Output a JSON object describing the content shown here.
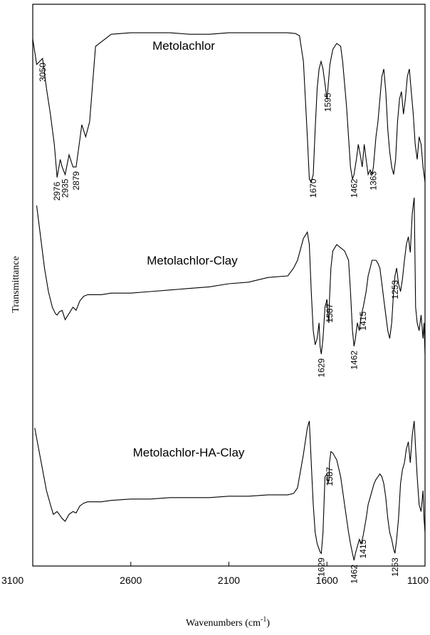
{
  "chart_data": {
    "type": "line",
    "xlabel": "Wavenumbers (cm",
    "xlabel_sup": "-1",
    "xlabel_close": ")",
    "ylabel": "Transmittance",
    "xlim": [
      3100,
      1100
    ],
    "x_reversed": true,
    "x_ticks": [
      {
        "value": 3100,
        "label": "3100"
      },
      {
        "value": 2600,
        "label": "2600"
      },
      {
        "value": 2100,
        "label": "2100"
      },
      {
        "value": 1600,
        "label": "1600"
      },
      {
        "value": 1100,
        "label": "1100"
      }
    ],
    "series": [
      {
        "name": "Metolachlor",
        "x": [
          3100,
          3080,
          3050,
          3030,
          3010,
          2990,
          2976,
          2960,
          2950,
          2935,
          2915,
          2895,
          2879,
          2860,
          2850,
          2830,
          2810,
          2780,
          2700,
          2600,
          2500,
          2400,
          2300,
          2200,
          2100,
          2000,
          1900,
          1800,
          1760,
          1740,
          1720,
          1700,
          1690,
          1680,
          1670,
          1660,
          1650,
          1640,
          1630,
          1620,
          1610,
          1600,
          1595,
          1585,
          1570,
          1550,
          1530,
          1520,
          1500,
          1480,
          1470,
          1462,
          1450,
          1440,
          1430,
          1420,
          1410,
          1400,
          1390,
          1380,
          1370,
          1363,
          1350,
          1340,
          1330,
          1320,
          1310,
          1300,
          1290,
          1280,
          1270,
          1260,
          1250,
          1240,
          1230,
          1220,
          1210,
          1200,
          1190,
          1180,
          1170,
          1160,
          1150,
          1140,
          1130,
          1120,
          1110,
          1100
        ],
        "y": [
          0.95,
          0.78,
          0.82,
          0.62,
          0.45,
          0.25,
          0.03,
          0.15,
          0.1,
          0.05,
          0.18,
          0.1,
          0.1,
          0.28,
          0.38,
          0.3,
          0.4,
          0.9,
          0.98,
          0.99,
          0.99,
          0.99,
          0.98,
          0.98,
          0.99,
          0.99,
          0.99,
          0.99,
          0.985,
          0.97,
          0.8,
          0.3,
          0.02,
          0.0,
          0.05,
          0.35,
          0.62,
          0.75,
          0.8,
          0.75,
          0.65,
          0.55,
          0.62,
          0.78,
          0.88,
          0.92,
          0.9,
          0.8,
          0.5,
          0.1,
          0.02,
          0.05,
          0.15,
          0.25,
          0.18,
          0.1,
          0.25,
          0.15,
          0.05,
          0.08,
          0.05,
          0.1,
          0.3,
          0.4,
          0.55,
          0.7,
          0.75,
          0.6,
          0.35,
          0.2,
          0.1,
          0.05,
          0.15,
          0.4,
          0.55,
          0.6,
          0.45,
          0.55,
          0.7,
          0.75,
          0.6,
          0.45,
          0.25,
          0.15,
          0.3,
          0.25,
          0.1,
          0.0
        ]
      },
      {
        "name": "Metolachlor-Clay",
        "x": [
          3080,
          3060,
          3040,
          3020,
          3000,
          2985,
          2976,
          2965,
          2950,
          2935,
          2915,
          2895,
          2879,
          2860,
          2840,
          2820,
          2800,
          2750,
          2700,
          2600,
          2500,
          2400,
          2300,
          2200,
          2100,
          2000,
          1900,
          1800,
          1770,
          1750,
          1720,
          1700,
          1690,
          1680,
          1670,
          1660,
          1650,
          1640,
          1635,
          1629,
          1620,
          1610,
          1600,
          1595,
          1590,
          1587,
          1580,
          1570,
          1550,
          1530,
          1510,
          1490,
          1480,
          1470,
          1462,
          1455,
          1445,
          1435,
          1425,
          1415,
          1400,
          1390,
          1380,
          1370,
          1360,
          1350,
          1340,
          1330,
          1320,
          1310,
          1300,
          1290,
          1280,
          1270,
          1260,
          1253,
          1245,
          1235,
          1225,
          1215,
          1205,
          1195,
          1185,
          1175,
          1165,
          1155,
          1148,
          1140,
          1130,
          1120,
          1110,
          1105,
          1100
        ],
        "y": [
          0.95,
          0.75,
          0.55,
          0.4,
          0.3,
          0.26,
          0.25,
          0.27,
          0.28,
          0.22,
          0.26,
          0.3,
          0.28,
          0.34,
          0.37,
          0.38,
          0.38,
          0.38,
          0.39,
          0.39,
          0.4,
          0.41,
          0.42,
          0.43,
          0.45,
          0.46,
          0.49,
          0.5,
          0.55,
          0.6,
          0.74,
          0.78,
          0.7,
          0.4,
          0.15,
          0.06,
          0.1,
          0.2,
          0.05,
          0.0,
          0.1,
          0.3,
          0.35,
          0.25,
          0.2,
          0.35,
          0.55,
          0.66,
          0.7,
          0.68,
          0.66,
          0.6,
          0.4,
          0.15,
          0.05,
          0.1,
          0.2,
          0.15,
          0.25,
          0.3,
          0.4,
          0.5,
          0.55,
          0.6,
          0.6,
          0.6,
          0.58,
          0.55,
          0.45,
          0.35,
          0.25,
          0.15,
          0.1,
          0.2,
          0.4,
          0.5,
          0.55,
          0.45,
          0.4,
          0.48,
          0.6,
          0.7,
          0.75,
          0.65,
          0.9,
          1.0,
          0.3,
          0.2,
          0.15,
          0.25,
          0.1,
          0.2,
          0.0
        ]
      },
      {
        "name": "Metolachlor-HA-Clay",
        "x": [
          3090,
          3070,
          3050,
          3030,
          3010,
          2995,
          2976,
          2965,
          2950,
          2935,
          2915,
          2895,
          2879,
          2860,
          2840,
          2820,
          2800,
          2750,
          2700,
          2600,
          2500,
          2400,
          2300,
          2200,
          2100,
          2000,
          1900,
          1800,
          1770,
          1750,
          1720,
          1700,
          1690,
          1680,
          1670,
          1660,
          1650,
          1640,
          1635,
          1629,
          1620,
          1610,
          1600,
          1595,
          1590,
          1587,
          1580,
          1570,
          1550,
          1530,
          1510,
          1490,
          1480,
          1470,
          1462,
          1455,
          1445,
          1435,
          1425,
          1415,
          1400,
          1390,
          1380,
          1370,
          1360,
          1350,
          1340,
          1330,
          1320,
          1310,
          1300,
          1290,
          1280,
          1270,
          1260,
          1253,
          1245,
          1235,
          1225,
          1215,
          1205,
          1195,
          1185,
          1175,
          1165,
          1155,
          1148,
          1140,
          1130,
          1120,
          1110,
          1105,
          1100
        ],
        "y": [
          0.95,
          0.8,
          0.65,
          0.5,
          0.4,
          0.33,
          0.35,
          0.33,
          0.3,
          0.28,
          0.33,
          0.35,
          0.34,
          0.39,
          0.41,
          0.42,
          0.42,
          0.42,
          0.43,
          0.44,
          0.44,
          0.45,
          0.45,
          0.45,
          0.46,
          0.46,
          0.47,
          0.47,
          0.48,
          0.52,
          0.76,
          0.95,
          1.0,
          0.7,
          0.4,
          0.2,
          0.12,
          0.08,
          0.06,
          0.05,
          0.2,
          0.6,
          0.62,
          0.55,
          0.58,
          0.7,
          0.78,
          0.77,
          0.72,
          0.6,
          0.4,
          0.2,
          0.12,
          0.05,
          0.0,
          0.05,
          0.1,
          0.15,
          0.12,
          0.18,
          0.3,
          0.4,
          0.45,
          0.5,
          0.55,
          0.58,
          0.6,
          0.62,
          0.6,
          0.55,
          0.45,
          0.3,
          0.2,
          0.15,
          0.08,
          0.05,
          0.15,
          0.3,
          0.55,
          0.65,
          0.7,
          0.8,
          0.85,
          0.7,
          0.9,
          1.0,
          0.8,
          0.6,
          0.4,
          0.35,
          0.5,
          0.3,
          0.2
        ]
      }
    ],
    "annotations": [
      {
        "series": 0,
        "label": "3050",
        "x": 3050
      },
      {
        "series": 0,
        "label": "2976",
        "x": 2976
      },
      {
        "series": 0,
        "label": "2935",
        "x": 2935
      },
      {
        "series": 0,
        "label": "2879",
        "x": 2879
      },
      {
        "series": 0,
        "label": "1670",
        "x": 1670
      },
      {
        "series": 0,
        "label": "1595",
        "x": 1595
      },
      {
        "series": 0,
        "label": "1462",
        "x": 1462
      },
      {
        "series": 0,
        "label": "1363",
        "x": 1363
      },
      {
        "series": 1,
        "label": "1629",
        "x": 1629
      },
      {
        "series": 1,
        "label": "1587",
        "x": 1587
      },
      {
        "series": 1,
        "label": "1462",
        "x": 1462
      },
      {
        "series": 1,
        "label": "1415",
        "x": 1415
      },
      {
        "series": 1,
        "label": "1253",
        "x": 1253
      },
      {
        "series": 2,
        "label": "1629",
        "x": 1629
      },
      {
        "series": 2,
        "label": "1587",
        "x": 1587
      },
      {
        "series": 2,
        "label": "1462",
        "x": 1462
      },
      {
        "series": 2,
        "label": "1415",
        "x": 1415
      },
      {
        "series": 2,
        "label": "1253",
        "x": 1253
      }
    ],
    "grid": false
  }
}
